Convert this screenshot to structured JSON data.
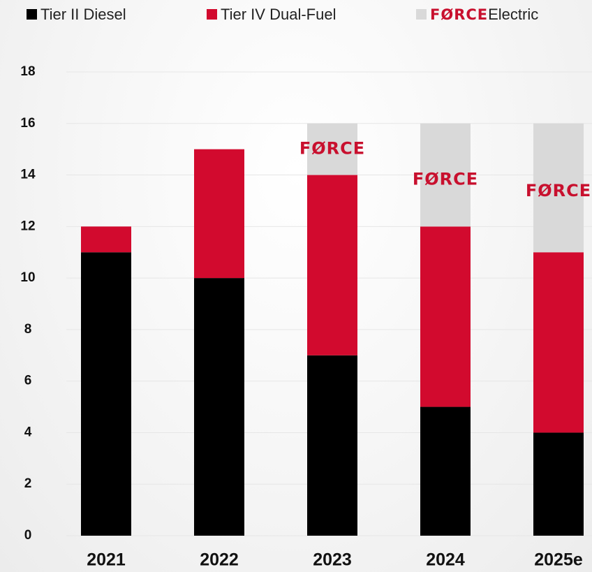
{
  "chart_data": {
    "type": "stacked_bar",
    "categories": [
      "2021",
      "2022",
      "2023",
      "2024",
      "2025e"
    ],
    "series": [
      {
        "name": "Tier II Diesel",
        "color": "#000000",
        "values": [
          11,
          10,
          7,
          5,
          4
        ]
      },
      {
        "name": "Tier IV Dual-Fuel",
        "color": "#d20a2e",
        "values": [
          1,
          5,
          7,
          7,
          7
        ]
      },
      {
        "name": "Electric",
        "brand": "FØRCE",
        "color": "#d9d9d9",
        "values": [
          0,
          0,
          2,
          4,
          5
        ]
      }
    ],
    "ylim": [
      0,
      18
    ],
    "yticks": [
      0,
      2,
      4,
      6,
      8,
      10,
      12,
      14,
      16,
      18
    ],
    "grid": true,
    "legend": "top"
  }
}
